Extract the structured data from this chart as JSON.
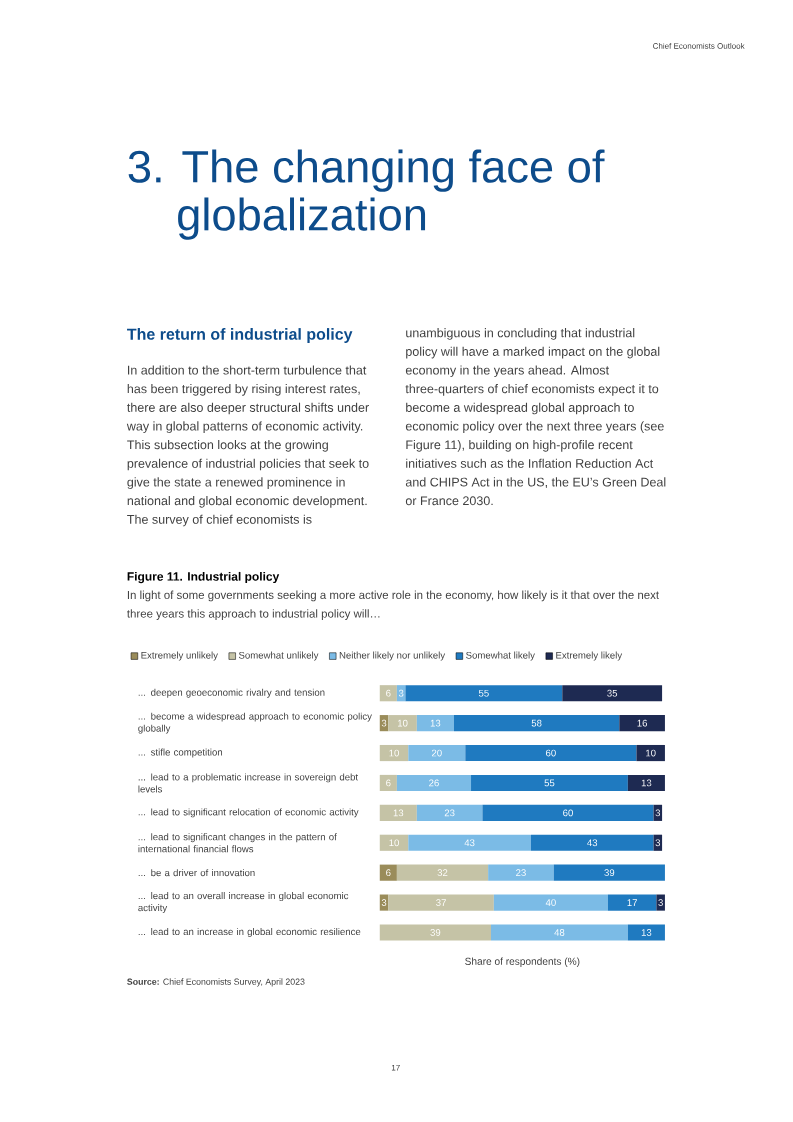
{
  "chart_data": {
    "type": "bar",
    "orientation": "horizontal",
    "stacked": true,
    "data_labels": true,
    "legend": "top",
    "title": "Figure 11. Industrial policy",
    "subtitle": "In light of some governments seeking a more active role in the economy, how likely is it that over the next three years this approach to industrial policy will…",
    "xlabel": "Share of respondents (%)",
    "categories": [
      "... deepen geoeconomic rivalry and tension",
      "... become a widespread approach to economic policy globally",
      "... stifle competition",
      "... lead to a problematic increase in sovereign debt levels",
      "... lead to significant relocation of economic activity",
      "... lead to significant changes in the pattern of international financial flows",
      "... be a driver of innovation",
      "... lead to an overall increase in global economic activity",
      "... lead to an increase in global economic resilience"
    ],
    "series": [
      {
        "name": "Extremely unlikely",
        "color": "#9a8c5a",
        "values": [
          null,
          3,
          null,
          null,
          null,
          null,
          6,
          3,
          null
        ]
      },
      {
        "name": "Somewhat unlikely",
        "color": "#c5c3a6",
        "values": [
          6,
          10,
          10,
          6,
          13,
          10,
          32,
          37,
          39
        ]
      },
      {
        "name": "Neither likely nor unlikely",
        "color": "#7bbbe6",
        "values": [
          3,
          13,
          20,
          26,
          23,
          43,
          23,
          40,
          48
        ]
      },
      {
        "name": "Somewhat likely",
        "color": "#1f7ac0",
        "values": [
          55,
          58,
          60,
          55,
          60,
          43,
          39,
          17,
          13
        ]
      },
      {
        "name": "Extremely likely",
        "color": "#1e2a52",
        "values": [
          35,
          16,
          10,
          13,
          3,
          3,
          null,
          3,
          null
        ]
      }
    ],
    "annotations": [
      "Chief Economists Outlook",
      "3. The changing face of globalization",
      "The return of industrial policy",
      "In addition to the short-term turbulence that has been triggered by rising interest rates, there are also deeper structural shifts under way in global patterns of economic activity. This subsection looks at the growing prevalence of industrial policies that seek to give the state a renewed prominence in national and global economic development. The survey of chief economists is",
      "unambiguous in concluding that industrial policy will have a marked impact on the global economy in the years ahead. Almost three-quarters of chief economists expect it to become a widespread global approach to economic policy over the next three years (see Figure 11), building on high-profile recent initiatives such as the Inflation Reduction Act and CHIPS Act in the US, the EU’s Green Deal or France 2030.",
      "**Source:** Chief Economists Survey, April 2023",
      "17"
    ]
  }
}
